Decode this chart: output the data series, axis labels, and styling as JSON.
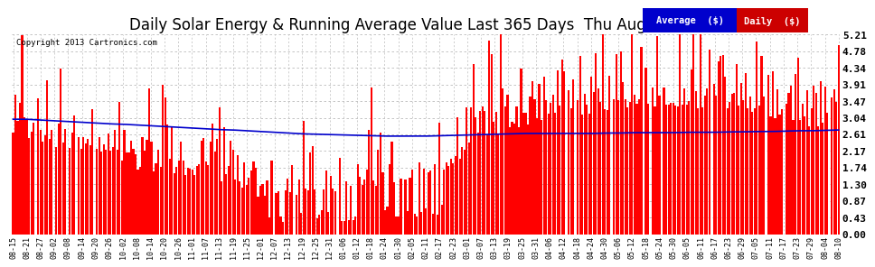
{
  "title": "Daily Solar Energy & Running Average Value Last 365 Days  Thu Aug 15  06:05",
  "copyright": "Copyright 2013 Cartronics.com",
  "yticks": [
    0.0,
    0.43,
    0.87,
    1.3,
    1.74,
    2.17,
    2.61,
    3.04,
    3.47,
    3.91,
    4.34,
    4.78,
    5.21
  ],
  "ylim": [
    0.0,
    5.21
  ],
  "bar_color": "#ff0000",
  "avg_line_color": "#0000cc",
  "bg_color": "#ffffff",
  "grid_color": "#bbbbbb",
  "title_fontsize": 12,
  "legend_avg_bg": "#0000cc",
  "legend_daily_bg": "#cc0000",
  "legend_text_avg": "Average  ($)",
  "legend_text_daily": "Daily  ($)",
  "x_tick_labels": [
    "08-15",
    "08-21",
    "08-27",
    "09-02",
    "09-08",
    "09-14",
    "09-20",
    "09-26",
    "10-02",
    "10-08",
    "10-14",
    "10-20",
    "10-26",
    "11-01",
    "11-07",
    "11-13",
    "11-19",
    "11-25",
    "12-01",
    "12-07",
    "12-13",
    "12-19",
    "12-25",
    "12-31",
    "01-06",
    "01-12",
    "01-18",
    "01-24",
    "01-30",
    "02-05",
    "02-11",
    "02-17",
    "02-23",
    "03-01",
    "03-07",
    "03-13",
    "03-19",
    "03-25",
    "03-31",
    "04-06",
    "04-12",
    "04-18",
    "04-24",
    "04-30",
    "05-06",
    "05-12",
    "05-18",
    "05-24",
    "05-30",
    "06-05",
    "06-11",
    "06-17",
    "06-23",
    "06-29",
    "07-05",
    "07-11",
    "07-17",
    "07-23",
    "07-29",
    "08-04",
    "08-10"
  ],
  "avg_curve_points": [
    3.0,
    3.0,
    2.98,
    2.96,
    2.94,
    2.92,
    2.9,
    2.88,
    2.87,
    2.85,
    2.83,
    2.81,
    2.79,
    2.77,
    2.75,
    2.73,
    2.72,
    2.7,
    2.68,
    2.66,
    2.64,
    2.62,
    2.61,
    2.6,
    2.59,
    2.58,
    2.57,
    2.56,
    2.56,
    2.56,
    2.56,
    2.57,
    2.58,
    2.59,
    2.6,
    2.61,
    2.62,
    2.63,
    2.63,
    2.63,
    2.63,
    2.63,
    2.63,
    2.64,
    2.64,
    2.65,
    2.65,
    2.65,
    2.65,
    2.66,
    2.66,
    2.66,
    2.67,
    2.67,
    2.68,
    2.68,
    2.69,
    2.7,
    2.7,
    2.71,
    2.72
  ]
}
